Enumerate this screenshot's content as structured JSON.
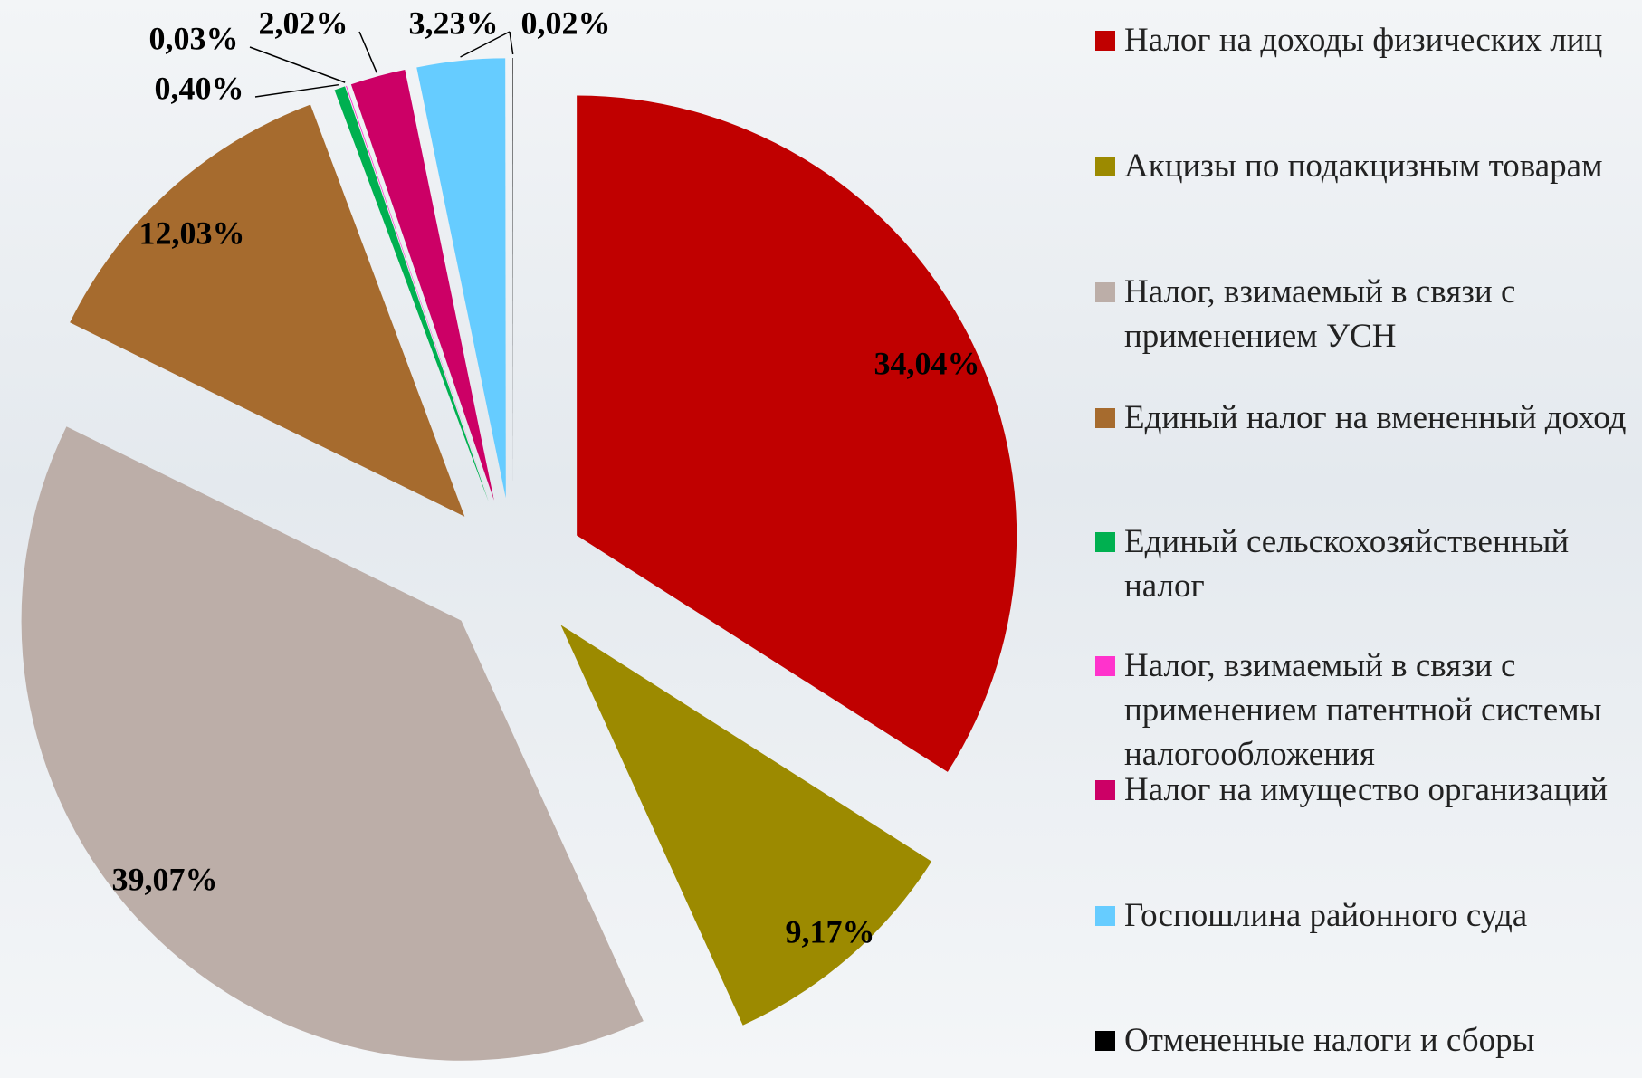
{
  "chart_data": {
    "type": "pie",
    "categories": [
      "Налог на доходы физических лиц",
      "Акцизы по подакцизным товарам",
      "Налог, взимаемый в связи с применением УСН",
      "Единый налог на вмененный доход",
      "Единый сельскохозяйственный налог",
      "Налог, взимаемый в связи с применением патентной системы налогообложения",
      "Налог на имущество организаций",
      "Госпошлина районного суда",
      "Отмененные налоги и сборы"
    ],
    "values": [
      34.04,
      9.17,
      39.07,
      12.03,
      0.4,
      0.03,
      2.02,
      3.23,
      0.02
    ],
    "value_labels": [
      "34,04%",
      "9,17%",
      "39,07%",
      "12,03%",
      "0,40%",
      "0,03%",
      "2,02%",
      "3,23%",
      "0,02%"
    ],
    "colors": [
      "#c00000",
      "#9c8a00",
      "#bcaea8",
      "#a66b2e",
      "#00b050",
      "#ff33cc",
      "#cc0066",
      "#66ccff",
      "#000000"
    ],
    "legend": "right"
  }
}
